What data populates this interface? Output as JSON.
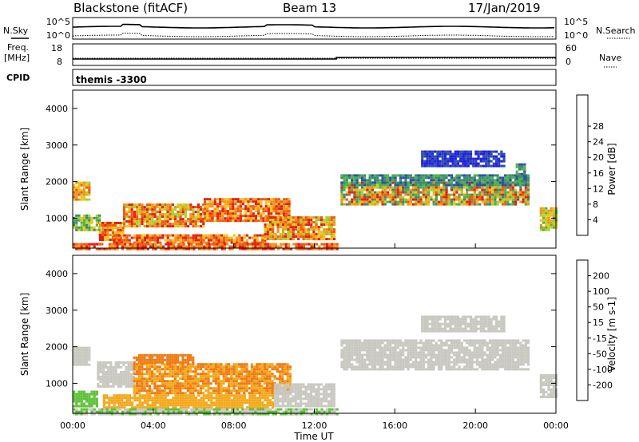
{
  "header": {
    "station": "Blackstone (fitACF)",
    "beam": "Beam 13",
    "date": "17/Jan/2019"
  },
  "params": {
    "nsky_label": "N.Sky",
    "nsky_ticks": [
      "10^5",
      "10^0"
    ],
    "nsearch_label": "N.Search",
    "nsearch_ticks": [
      "10^5",
      "10^0"
    ],
    "freq_label": "Freq.",
    "freq_unit": "[MHz]",
    "freq_ticks": [
      "18",
      "8"
    ],
    "nave_label": "Nave",
    "nave_ticks": [
      "60",
      "0"
    ],
    "cpid_label": "CPID",
    "cpid_value": "themis -3300"
  },
  "colors": {
    "power": [
      "#1f1fe0",
      "#2e4fa8",
      "#3b8a6e",
      "#4db24b",
      "#a8d030",
      "#f2c21a",
      "#f59218",
      "#ef5a12",
      "#e31e10"
    ],
    "velocity": [
      "#2434b8",
      "#2c62b4",
      "#2f9a6c",
      "#5fc23a",
      "#c8c8c0",
      "#f3a81c",
      "#ef7a12",
      "#e8460c",
      "#d61410"
    ]
  },
  "chart_data": [
    {
      "type": "heatmap",
      "name": "power",
      "ylabel": "Slant Range [km]",
      "yticks": [
        1000,
        2000,
        3000,
        4000
      ],
      "ylim": [
        180,
        4500
      ],
      "xlim": [
        0,
        24
      ],
      "colorbar_label": "Power [dB]",
      "colorbar_ticks": [
        "4",
        "8",
        "12",
        "16",
        "20",
        "24",
        "28"
      ],
      "regions": [
        {
          "t": [
            0.0,
            0.8
          ],
          "r": [
            1500,
            2000
          ],
          "c": [
            4,
            7
          ]
        },
        {
          "t": [
            0.0,
            1.3
          ],
          "r": [
            650,
            1100
          ],
          "c": [
            2,
            5
          ]
        },
        {
          "t": [
            1.3,
            2.5
          ],
          "r": [
            400,
            900
          ],
          "c": [
            5,
            8
          ]
        },
        {
          "t": [
            2.5,
            6.5
          ],
          "r": [
            800,
            1400
          ],
          "c": [
            4,
            8
          ]
        },
        {
          "t": [
            6.5,
            10.8
          ],
          "r": [
            900,
            1550
          ],
          "c": [
            5,
            8
          ]
        },
        {
          "t": [
            2.0,
            9.5
          ],
          "r": [
            320,
            560
          ],
          "c": [
            5,
            8
          ]
        },
        {
          "t": [
            9.5,
            13.0
          ],
          "r": [
            450,
            1050
          ],
          "c": [
            4,
            8
          ]
        },
        {
          "t": [
            0.0,
            13.2
          ],
          "r": [
            180,
            320
          ],
          "c": [
            6,
            8
          ]
        },
        {
          "t": [
            13.3,
            22.6
          ],
          "r": [
            1400,
            2000
          ],
          "c": [
            2,
            8
          ]
        },
        {
          "t": [
            13.3,
            22.6
          ],
          "r": [
            1900,
            2200
          ],
          "c": [
            1,
            3
          ]
        },
        {
          "t": [
            17.3,
            21.4
          ],
          "r": [
            2450,
            2850
          ],
          "c": [
            0,
            1
          ]
        },
        {
          "t": [
            22.0,
            22.4
          ],
          "r": [
            2000,
            2500
          ],
          "c": [
            1,
            3
          ]
        },
        {
          "t": [
            23.2,
            24.0
          ],
          "r": [
            700,
            1300
          ],
          "c": [
            3,
            6
          ]
        }
      ]
    },
    {
      "type": "heatmap",
      "name": "velocity",
      "ylabel": "Slant Range [km]",
      "yticks": [
        1000,
        2000,
        3000,
        4000
      ],
      "ylim": [
        180,
        4500
      ],
      "xlim": [
        0,
        24
      ],
      "xlabel": "Time UT",
      "xticks": [
        "00:00",
        "04:00",
        "08:00",
        "12:00",
        "16:00",
        "20:00",
        "00:00"
      ],
      "colorbar_label": "Velocity [m s-1]",
      "colorbar_ticks": [
        "-200",
        "-100",
        "-50",
        "-15",
        "15",
        "50",
        "100",
        "200"
      ],
      "regions": [
        {
          "t": [
            0.0,
            0.8
          ],
          "r": [
            1500,
            2000
          ],
          "c": [
            4,
            4
          ]
        },
        {
          "t": [
            0.0,
            1.2
          ],
          "r": [
            350,
            800
          ],
          "c": [
            3,
            3
          ]
        },
        {
          "t": [
            1.2,
            3.0
          ],
          "r": [
            900,
            1600
          ],
          "c": [
            4,
            4
          ]
        },
        {
          "t": [
            3.0,
            10.8
          ],
          "r": [
            750,
            1550
          ],
          "c": [
            5,
            6
          ]
        },
        {
          "t": [
            3.0,
            6.0
          ],
          "r": [
            1550,
            1800
          ],
          "c": [
            6,
            6
          ]
        },
        {
          "t": [
            1.5,
            10.0
          ],
          "r": [
            320,
            700
          ],
          "c": [
            5,
            5
          ]
        },
        {
          "t": [
            10.0,
            13.0
          ],
          "r": [
            400,
            1000
          ],
          "c": [
            4,
            4
          ]
        },
        {
          "t": [
            0.0,
            13.2
          ],
          "r": [
            180,
            320
          ],
          "c": [
            3,
            4
          ]
        },
        {
          "t": [
            13.3,
            22.6
          ],
          "r": [
            1350,
            2200
          ],
          "c": [
            4,
            4
          ]
        },
        {
          "t": [
            17.3,
            21.4
          ],
          "r": [
            2450,
            2850
          ],
          "c": [
            4,
            4
          ]
        },
        {
          "t": [
            23.2,
            24.0
          ],
          "r": [
            650,
            1250
          ],
          "c": [
            4,
            4
          ]
        }
      ]
    }
  ]
}
